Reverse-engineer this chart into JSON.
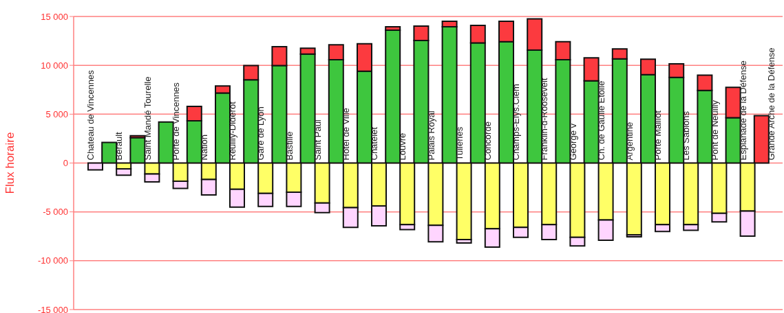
{
  "chart_data": {
    "type": "bar",
    "stacked": true,
    "ylabel": "Flux horaire",
    "categories": [
      "Chateau de Vincennes",
      "Bérault",
      "Saint Mandé Tourelle",
      "Porte de Vincennes",
      "Nation",
      "Reuilly-Diderot",
      "Gare de Lyon",
      "Bastille",
      "Saint Paul",
      "Hôtel de Ville",
      "Châtelet",
      "Louvre",
      "Palais Royal",
      "Tuileries",
      "Concorde",
      "Champs-Elys.Clém",
      "Franklin-d-Roosevelt",
      "George v",
      "Ch. de Gaulle Etoile",
      "Argentine",
      "Porte Maillot",
      "Les Sablons",
      "Pont de Neuilly",
      "Esplanade de la Défense",
      "Grande Arche de la Défense"
    ],
    "series": [
      {
        "color": "#3ec63e",
        "values": [
          null,
          2100,
          2600,
          4200,
          4320,
          7170,
          8520,
          9970,
          11160,
          10580,
          9390,
          13590,
          12540,
          13940,
          12300,
          12420,
          11560,
          10580,
          8410,
          10670,
          9040,
          8760,
          7430,
          4630,
          null
        ]
      },
      {
        "color": "#fc3a3f",
        "values": [
          null,
          null,
          200,
          null,
          1470,
          720,
          1450,
          1930,
          590,
          1520,
          2820,
          350,
          1470,
          560,
          1780,
          2080,
          3200,
          1840,
          2360,
          1010,
          1590,
          1400,
          1560,
          3120,
          4840
        ]
      },
      {
        "color": "#ffff66",
        "values": [
          null,
          -590,
          -1120,
          -1870,
          -1680,
          -2690,
          -3110,
          -2990,
          -4090,
          -4560,
          -4390,
          -6310,
          -6380,
          -7830,
          -6730,
          -6590,
          -6310,
          -7600,
          -5840,
          -7360,
          -6310,
          -6310,
          -5140,
          -4910,
          null
        ]
      },
      {
        "color": "#ffd5ff",
        "values": [
          -700,
          -650,
          -820,
          -730,
          -1590,
          -1820,
          -1330,
          -1450,
          -980,
          -2030,
          -2040,
          -510,
          -1680,
          -350,
          -1870,
          -1010,
          -1520,
          -880,
          -2060,
          -190,
          -700,
          -580,
          -890,
          -2570,
          null
        ]
      }
    ],
    "ylim": [
      -15000,
      15000
    ],
    "yticks": [
      {
        "value": -15000,
        "label": "-15 000"
      },
      {
        "value": -10000,
        "label": "-10 000"
      },
      {
        "value": -5000,
        "label": "-5 000"
      },
      0,
      {
        "value": 5000,
        "label": "5 000"
      },
      {
        "value": 10000,
        "label": "10 000"
      },
      {
        "value": 15000,
        "label": "15 000"
      }
    ],
    "grid": "y",
    "legend": false
  }
}
